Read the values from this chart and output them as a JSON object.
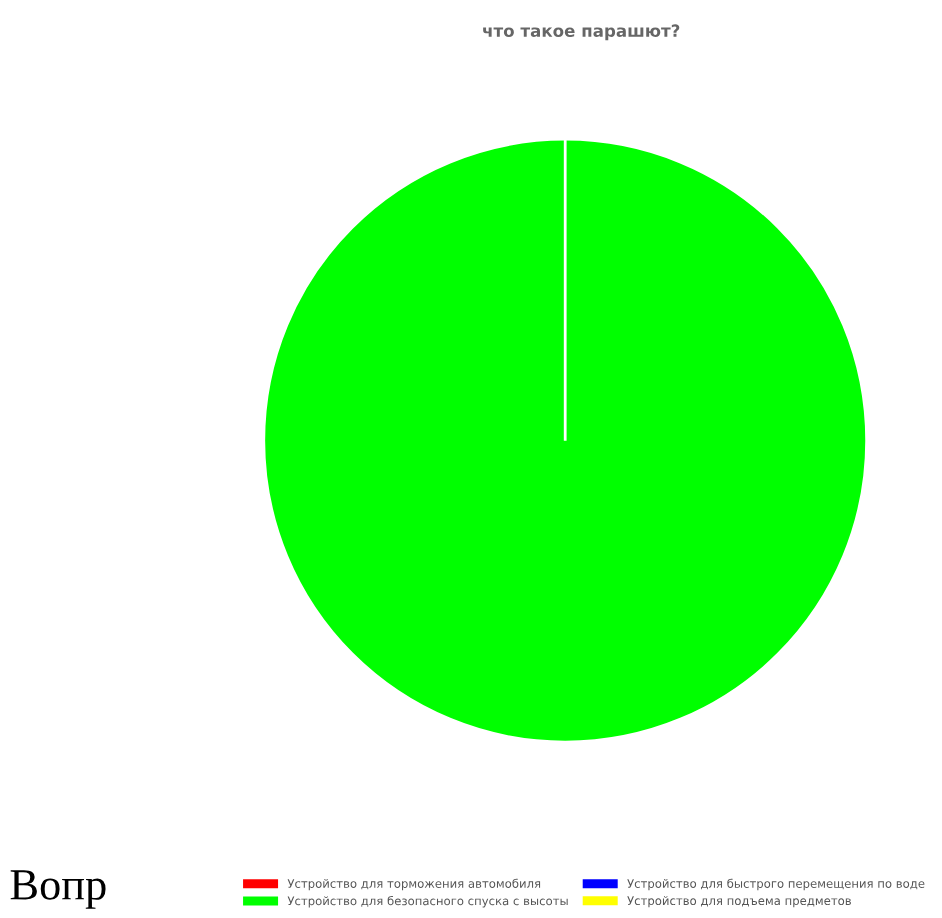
{
  "chart_data": {
    "type": "pie",
    "title": "что такое парашют?",
    "categories": [
      "Устройство для торможения автомобиля",
      "Устройство для быстрого перемещения по воде",
      "Устройство для безопасного спуска с высоты",
      "Устройство для подъема предметов"
    ],
    "values": [
      0,
      0,
      100,
      0
    ],
    "colors": [
      "#ff0000",
      "#0000ff",
      "#00ff00",
      "#ffff00"
    ],
    "legend": "bottom",
    "annotations": [
      "Вопр"
    ]
  }
}
